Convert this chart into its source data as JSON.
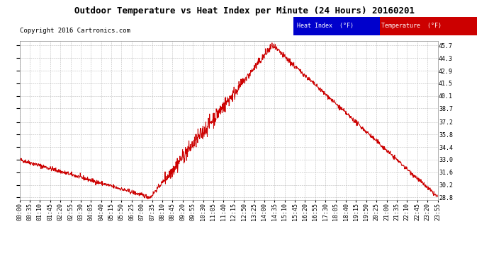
{
  "title": "Outdoor Temperature vs Heat Index per Minute (24 Hours) 20160201",
  "copyright": "Copyright 2016 Cartronics.com",
  "legend_items": [
    {
      "label": "Heat Index  (°F)",
      "bg_color": "#0000cc",
      "text_color": "#ffffff"
    },
    {
      "label": "Temperature  (°F)",
      "bg_color": "#cc0000",
      "text_color": "#ffffff"
    }
  ],
  "line_color": "#cc0000",
  "y_ticks": [
    28.8,
    30.2,
    31.6,
    33.0,
    34.4,
    35.8,
    37.2,
    38.7,
    40.1,
    41.5,
    42.9,
    44.3,
    45.7
  ],
  "ylim": [
    28.5,
    46.2
  ],
  "x_tick_labels": [
    "00:00",
    "00:35",
    "01:10",
    "01:45",
    "02:20",
    "02:55",
    "03:30",
    "04:05",
    "04:40",
    "05:15",
    "05:50",
    "06:25",
    "07:00",
    "07:35",
    "08:10",
    "08:45",
    "09:20",
    "09:55",
    "10:30",
    "11:05",
    "11:40",
    "12:15",
    "12:50",
    "13:25",
    "14:00",
    "14:35",
    "15:10",
    "15:45",
    "16:20",
    "16:55",
    "17:30",
    "18:05",
    "18:40",
    "19:15",
    "19:50",
    "20:25",
    "21:00",
    "21:35",
    "22:10",
    "22:45",
    "23:20",
    "23:55"
  ],
  "background_color": "#ffffff",
  "grid_color": "#aaaaaa",
  "title_fontsize": 9,
  "copyright_fontsize": 6.5,
  "tick_fontsize": 6
}
